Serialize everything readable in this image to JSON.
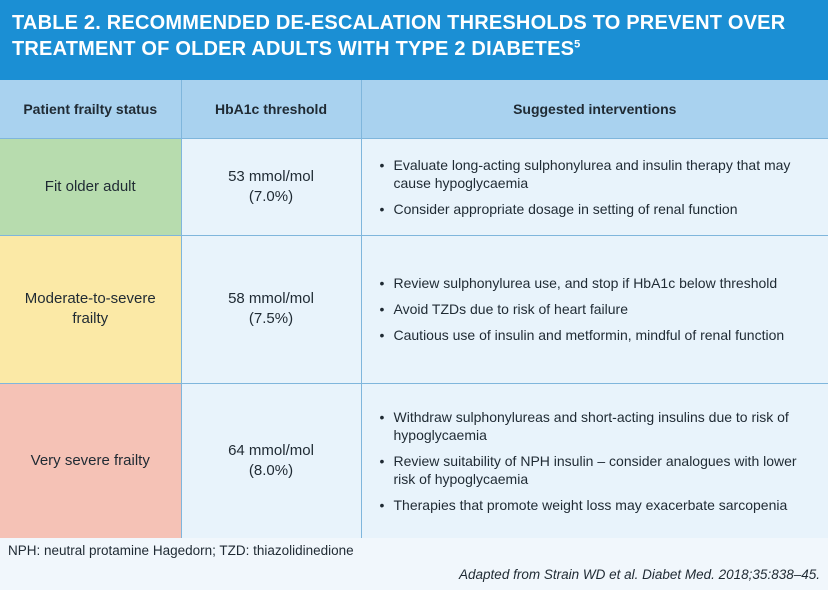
{
  "title": {
    "line1": "TABLE 2. RECOMMENDED  DE-ESCALATION THRESHOLDS TO PREVENT OVER",
    "line2": "TREATMENT OF OLDER ADULTS WITH TYPE 2 DIABETES",
    "ref": "5"
  },
  "headers": {
    "status": "Patient frailty status",
    "threshold": "HbA1c threshold",
    "interventions": "Suggested interventions"
  },
  "colors": {
    "title_bg": "#1b8fd4",
    "header_bg": "#a9d2ef",
    "fit": "#b7dcae",
    "moderate": "#fbe9a6",
    "severe": "#f5c2b6",
    "cell_bg": "#e8f3fb"
  },
  "rows": [
    {
      "status": "Fit older adult",
      "threshold_mmol": "53 mmol/mol",
      "threshold_pct": "(7.0%)",
      "interventions": [
        "Evaluate long-acting sulphonylurea and insulin therapy that may cause hypoglycaemia",
        "Consider appropriate dosage in setting of renal function"
      ]
    },
    {
      "status": "Moderate-to-severe frailty",
      "threshold_mmol": "58 mmol/mol",
      "threshold_pct": "(7.5%)",
      "interventions": [
        "Review sulphonylurea use, and stop if HbA1c below threshold",
        "Avoid TZDs due to risk of heart failure",
        "Cautious use of insulin and metformin, mindful of renal function"
      ]
    },
    {
      "status": "Very severe frailty",
      "threshold_mmol": "64 mmol/mol",
      "threshold_pct": "(8.0%)",
      "interventions": [
        "Withdraw sulphonylureas and short-acting insulins due to risk of hypoglycaemia",
        "Review suitability of NPH insulin – consider analogues with lower risk of hypoglycaemia",
        "Therapies that promote weight loss may exacerbate sarcopenia"
      ]
    }
  ],
  "footnote": "NPH: neutral protamine Hagedorn; TZD: thiazolidinedione",
  "source": "Adapted from Strain WD et al. Diabet Med. 2018;35:838–45."
}
